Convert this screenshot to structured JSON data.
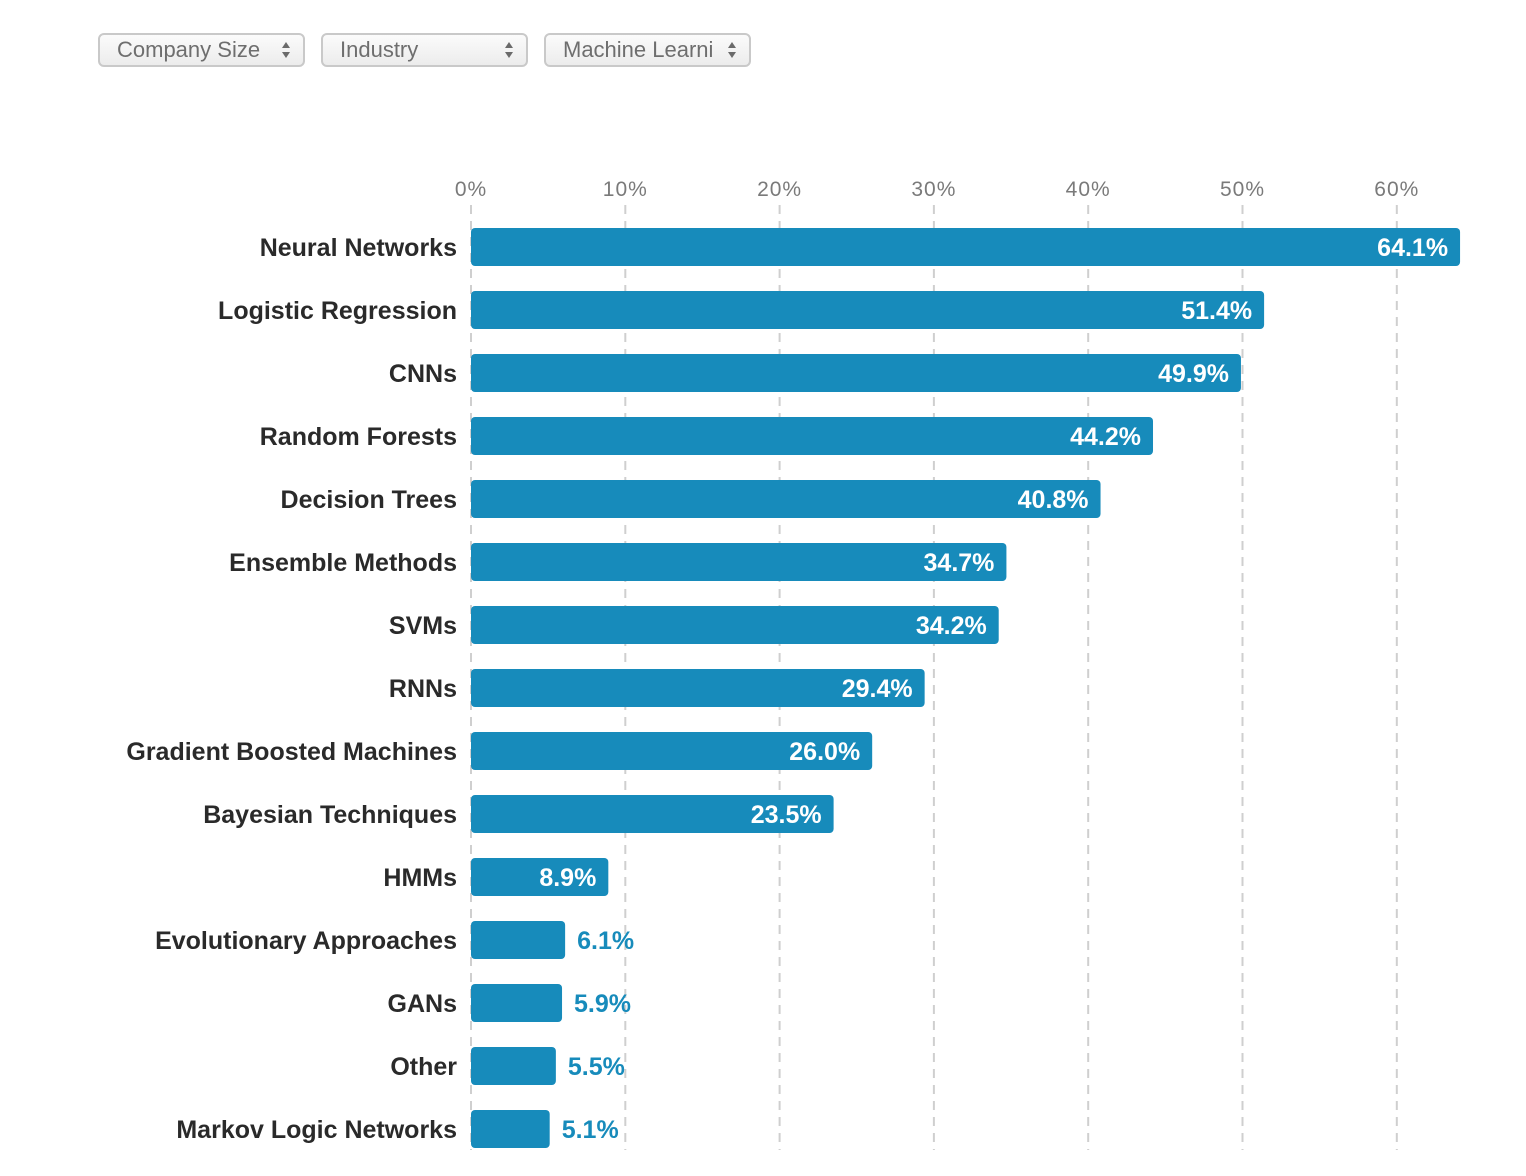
{
  "filters": [
    {
      "value": "Company Size"
    },
    {
      "value": "Industry"
    },
    {
      "value": "Machine Learni"
    }
  ],
  "colors": {
    "bar": "#178bbb",
    "inside_label": "#ffffff",
    "outside_label": "#178bbb",
    "category_label": "#2a2a2a",
    "tick_label": "#7a7a7a",
    "gridline": "#cfcfcf"
  },
  "chart_data": {
    "type": "bar",
    "orientation": "horizontal",
    "categories": [
      "Neural Networks",
      "Logistic Regression",
      "CNNs",
      "Random Forests",
      "Decision Trees",
      "Ensemble Methods",
      "SVMs",
      "RNNs",
      "Gradient Boosted Machines",
      "Bayesian Techniques",
      "HMMs",
      "Evolutionary Approaches",
      "GANs",
      "Other",
      "Markov Logic Networks"
    ],
    "values": [
      64.1,
      51.4,
      49.9,
      44.2,
      40.8,
      34.7,
      34.2,
      29.4,
      26.0,
      23.5,
      8.9,
      6.1,
      5.9,
      5.5,
      5.1
    ],
    "value_labels": [
      "64.1%",
      "51.4%",
      "49.9%",
      "44.2%",
      "40.8%",
      "34.7%",
      "34.2%",
      "29.4%",
      "26.0%",
      "23.5%",
      "8.9%",
      "6.1%",
      "5.9%",
      "5.5%",
      "5.1%"
    ],
    "ticks": [
      0,
      10,
      20,
      30,
      40,
      50,
      60
    ],
    "tick_labels": [
      "0%",
      "10%",
      "20%",
      "30%",
      "40%",
      "50%",
      "60%"
    ],
    "xlim": [
      0,
      64.1
    ],
    "axis_position": "top",
    "grid": true,
    "grid_style": "dashed",
    "legend": "none"
  }
}
